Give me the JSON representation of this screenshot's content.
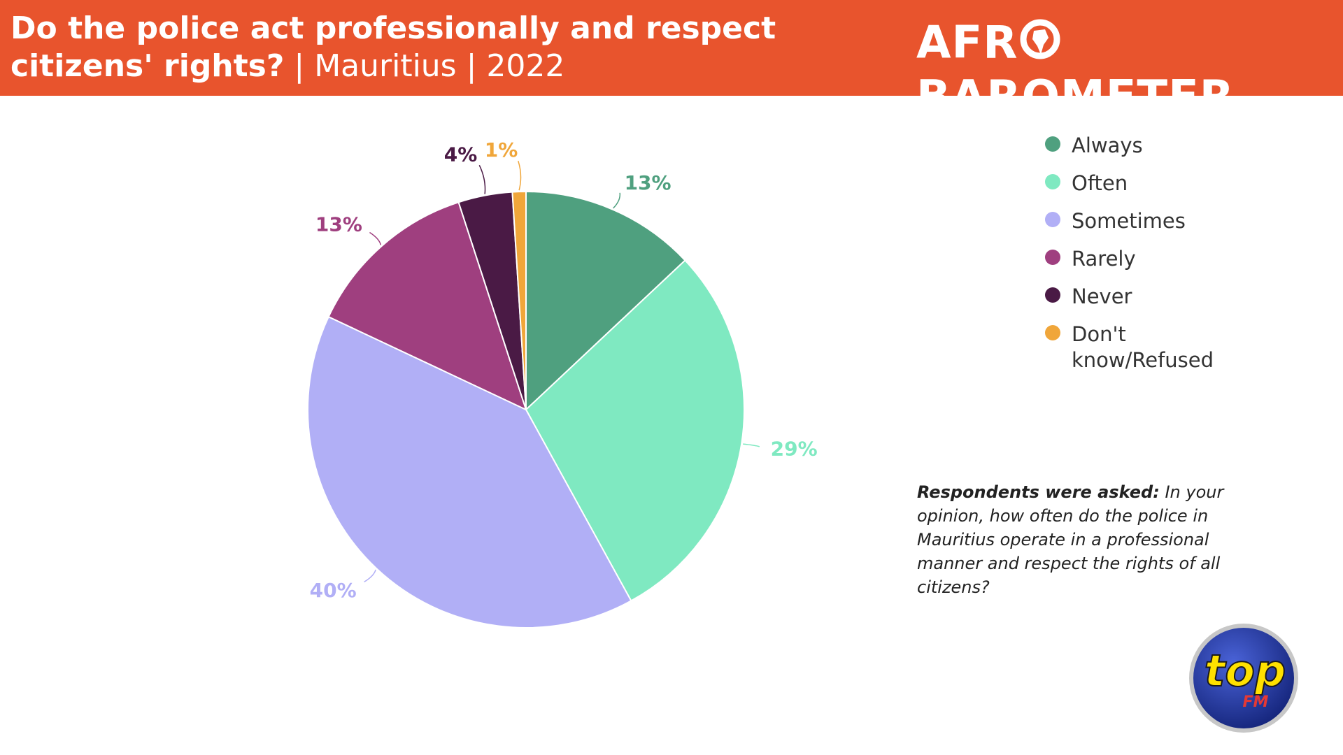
{
  "header": {
    "title_bold": "Do the police act professionally and respect citizens' rights?",
    "title_rest": " | Mauritius | 2022",
    "brand_left": "AFR",
    "brand_right": "BAROMETER",
    "colors": {
      "background": "#e8542d",
      "text": "#ffffff"
    }
  },
  "chart_data": {
    "type": "pie",
    "slices": [
      {
        "label": "Always",
        "value": 13,
        "display": "13%",
        "color": "#4fa07f"
      },
      {
        "label": "Often",
        "value": 29,
        "display": "29%",
        "color": "#7fe9c1"
      },
      {
        "label": "Sometimes",
        "value": 40,
        "display": "40%",
        "color": "#b1aff6"
      },
      {
        "label": "Rarely",
        "value": 13,
        "display": "13%",
        "color": "#9f3f7f"
      },
      {
        "label": "Never",
        "value": 4,
        "display": "4%",
        "color": "#4a1a45"
      },
      {
        "label": "Don't know/Refused",
        "value": 1,
        "display": "1%",
        "color": "#f0a63a"
      }
    ],
    "legend_placement": "top-right",
    "start": "top, clockwise"
  },
  "legend": {
    "items": [
      "Always",
      "Often",
      "Sometimes",
      "Rarely",
      "Never",
      "Don't know/Refused"
    ]
  },
  "note": {
    "lead": "Respondents were asked:",
    "text": " In your opinion, how often do the police in Mauritius operate in a professional manner and respect the rights of all citizens?"
  },
  "logo": {
    "text_main": "top",
    "text_sub": "FM",
    "colors": {
      "ring": "#1a2f8c",
      "text": "#ffe100",
      "sub": "#e53935"
    }
  }
}
